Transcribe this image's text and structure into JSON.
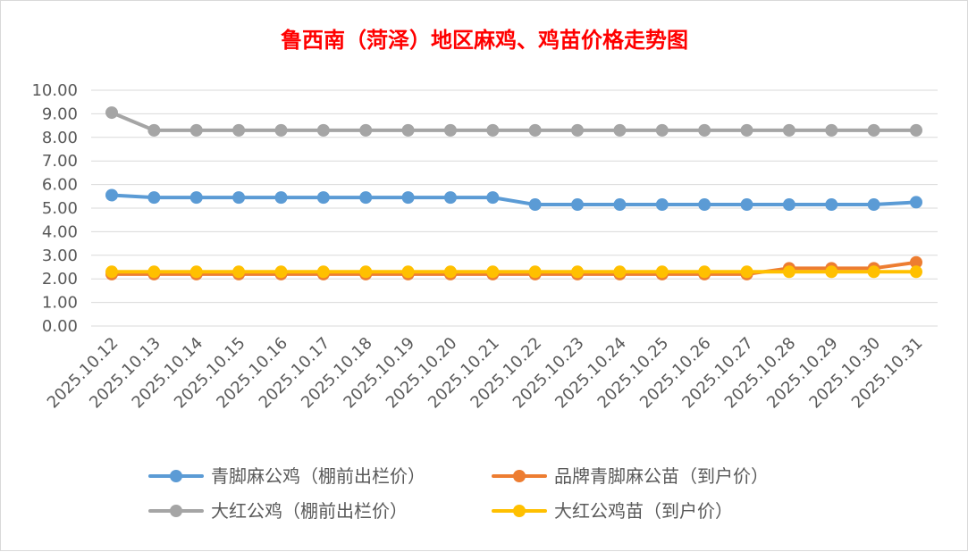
{
  "chart_data": {
    "type": "line",
    "title": "鲁西南（菏泽）地区麻鸡、鸡苗价格走势图",
    "ylim": [
      0,
      10
    ],
    "yticks": [
      "0.00",
      "1.00",
      "2.00",
      "3.00",
      "4.00",
      "5.00",
      "6.00",
      "7.00",
      "8.00",
      "9.00",
      "10.00"
    ],
    "grid": true,
    "legend_position": "bottom",
    "x": [
      "2025.10.12",
      "2025.10.13",
      "2025.10.14",
      "2025.10.15",
      "2025.10.16",
      "2025.10.17",
      "2025.10.18",
      "2025.10.19",
      "2025.10.20",
      "2025.10.21",
      "2025.10.22",
      "2025.10.23",
      "2025.10.24",
      "2025.10.25",
      "2025.10.26",
      "2025.10.27",
      "2025.10.28",
      "2025.10.29",
      "2025.10.30",
      "2025.10.31"
    ],
    "series": [
      {
        "name": "青脚麻公鸡（棚前出栏价）",
        "color": "#5b9bd5",
        "values": [
          5.55,
          5.45,
          5.45,
          5.45,
          5.45,
          5.45,
          5.45,
          5.45,
          5.45,
          5.45,
          5.15,
          5.15,
          5.15,
          5.15,
          5.15,
          5.15,
          5.15,
          5.15,
          5.15,
          5.25
        ]
      },
      {
        "name": "品牌青脚麻公苗（到户价）",
        "color": "#ed7d31",
        "values": [
          2.2,
          2.2,
          2.2,
          2.2,
          2.2,
          2.2,
          2.2,
          2.2,
          2.2,
          2.2,
          2.2,
          2.2,
          2.2,
          2.2,
          2.2,
          2.2,
          2.45,
          2.45,
          2.45,
          2.7
        ]
      },
      {
        "name": "大红公鸡（棚前出栏价）",
        "color": "#a5a5a5",
        "values": [
          9.05,
          8.3,
          8.3,
          8.3,
          8.3,
          8.3,
          8.3,
          8.3,
          8.3,
          8.3,
          8.3,
          8.3,
          8.3,
          8.3,
          8.3,
          8.3,
          8.3,
          8.3,
          8.3,
          8.3
        ]
      },
      {
        "name": "大红公鸡苗（到户价）",
        "color": "#ffc000",
        "values": [
          2.3,
          2.3,
          2.3,
          2.3,
          2.3,
          2.3,
          2.3,
          2.3,
          2.3,
          2.3,
          2.3,
          2.3,
          2.3,
          2.3,
          2.3,
          2.3,
          2.3,
          2.3,
          2.3,
          2.3
        ]
      }
    ],
    "draw_order": [
      1,
      3,
      0,
      2
    ]
  }
}
